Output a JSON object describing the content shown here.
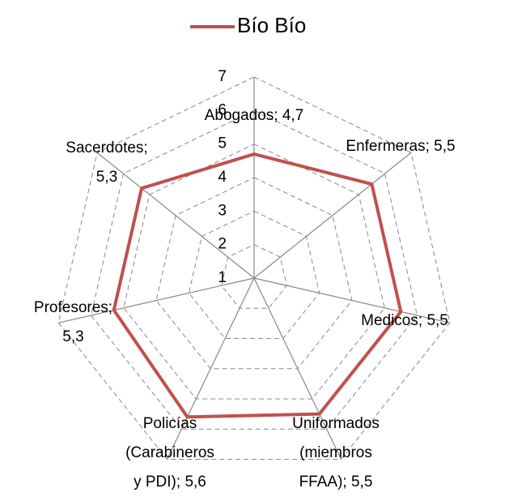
{
  "chart_data": {
    "type": "radar",
    "categories": [
      "Abogados;",
      "Enfermeras;",
      "Medicos;",
      "Uniformados (miembros FFAA);",
      "Policías (Carabineros y PDI);",
      "Profesores;",
      "Sacerdotes;"
    ],
    "series": [
      {
        "name": "Bío Bío",
        "color": "#c0504d",
        "values": [
          4.7,
          5.5,
          5.5,
          5.5,
          5.6,
          5.3,
          5.3
        ],
        "value_labels": [
          "4,7",
          "5,5",
          "5,5",
          "5,5",
          "5,6",
          "5,3",
          "5,3"
        ]
      }
    ],
    "ylim": [
      1,
      7
    ],
    "yticks": [
      1,
      2,
      3,
      4,
      5,
      6,
      7
    ],
    "grid": true,
    "legend": "top"
  }
}
